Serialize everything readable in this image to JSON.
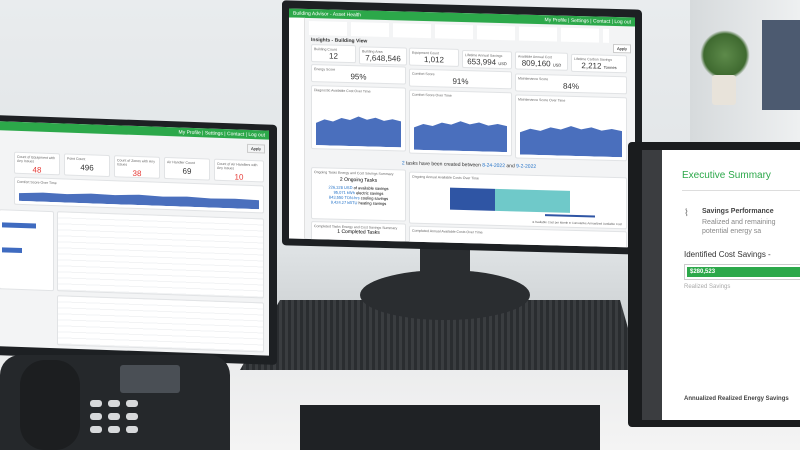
{
  "center_monitor": {
    "app_title": "Building Advisor - Asset Health",
    "top_links": [
      "My Profile",
      "Settings",
      "Contact",
      "Log out"
    ],
    "view_title": "Insights - Building View",
    "apply_label": "Apply",
    "kpis": [
      {
        "label": "Building Count",
        "value": "12",
        "unit": ""
      },
      {
        "label": "Building Area",
        "value": "7,648,546",
        "unit": "sqft"
      },
      {
        "label": "Equipment Count",
        "value": "1,012",
        "unit": ""
      },
      {
        "label": "Lifetime Annual Savings",
        "value": "653,994",
        "unit": "USD"
      },
      {
        "label": "Available Annual Cost",
        "value": "809,160",
        "unit": "USD"
      },
      {
        "label": "Lifetime Carbon Savings",
        "value": "2,212",
        "unit": "Tonnes"
      }
    ],
    "scores": [
      {
        "label": "Energy Score",
        "value": "95%"
      },
      {
        "label": "Comfort Score",
        "value": "91%"
      },
      {
        "label": "Maintenance Score",
        "value": "84%"
      }
    ],
    "charts": [
      "Diagnostic Available Cost Over Time",
      "Comfort Score Over Time",
      "Maintenance Score Over Time"
    ],
    "tasks_banner": {
      "count": "2",
      "text": "tasks have been created between",
      "start": "8-24-2022",
      "and": "and",
      "end": "9-2-2022"
    },
    "ongoing": {
      "title": "Ongoing Tasks Energy and Cost Savings Summary",
      "count_label": "2 Ongoing Tasks",
      "lines": [
        {
          "value": "226,328 USD",
          "text": "of available savings"
        },
        {
          "value": "95,071 kWh",
          "text": "electric savings"
        },
        {
          "value": "843,550 TON-hrs",
          "text": "cooling savings"
        },
        {
          "value": "9,424.27 kBTU",
          "text": "heating savings"
        }
      ]
    },
    "ongoing_chart": {
      "title": "Ongoing Annual Available Costs Over Time",
      "legend": [
        "Available Cost per Month",
        "Cumulative Annualized Available Cost"
      ],
      "colors": [
        "#2f55a4",
        "#6fc9c9"
      ]
    },
    "completed": {
      "title": "Completed Tasks Energy and Cost Savings Summary",
      "count_label": "1 Completed Tasks"
    },
    "completed_chart": {
      "title": "Completed Annual Available Costs Over Time"
    }
  },
  "left_monitor": {
    "top_links": [
      "My Profile",
      "Settings",
      "Contact",
      "Log out"
    ],
    "apply_label": "Apply",
    "kpis": [
      {
        "label": "Count of Equipment with Any Issues",
        "value": "48",
        "alert": true
      },
      {
        "label": "Point Count",
        "value": "496",
        "alert": false
      },
      {
        "label": "Count of Zones with Any Issues",
        "value": "38",
        "alert": true
      },
      {
        "label": "Air Handler Count",
        "value": "69",
        "alert": false
      },
      {
        "label": "Count of Air Handlers with Any Issues",
        "value": "10",
        "alert": true
      }
    ],
    "chart_title": "Comfort Score Over Time"
  },
  "right_monitor": {
    "title": "Executive Summary",
    "section_title": "Savings Performance",
    "section_desc": "Realized and remaining potential energy sa",
    "bar_title": "Identified Cost Savings -",
    "bar_value": "$280,523",
    "bar_caption": "Realized Savings",
    "footer": "Annualized Realized Energy Savings",
    "accent": "#2ca84a"
  }
}
